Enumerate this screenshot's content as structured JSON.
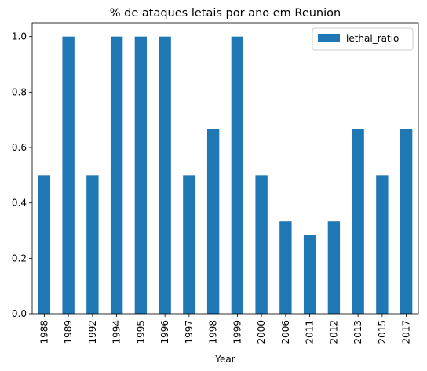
{
  "chart_data": {
    "type": "bar",
    "title": "% de ataques letais por ano em Reunion",
    "xlabel": "Year",
    "ylabel": "",
    "categories": [
      "1988",
      "1989",
      "1992",
      "1994",
      "1995",
      "1996",
      "1997",
      "1998",
      "1999",
      "2000",
      "2006",
      "2011",
      "2012",
      "2013",
      "2015",
      "2017"
    ],
    "series": [
      {
        "name": "lethal_ratio",
        "color": "#1f77b4",
        "values": [
          0.5,
          1.0,
          0.5,
          1.0,
          1.0,
          1.0,
          0.5,
          0.6667,
          1.0,
          0.5,
          0.3333,
          0.2857,
          0.3333,
          0.6667,
          0.5,
          0.6667
        ]
      }
    ],
    "ylim": [
      0,
      1.05
    ],
    "yticks": [
      "0.0",
      "0.2",
      "0.4",
      "0.6",
      "0.8",
      "1.0"
    ],
    "grid": false,
    "legend_position": "top-right"
  }
}
